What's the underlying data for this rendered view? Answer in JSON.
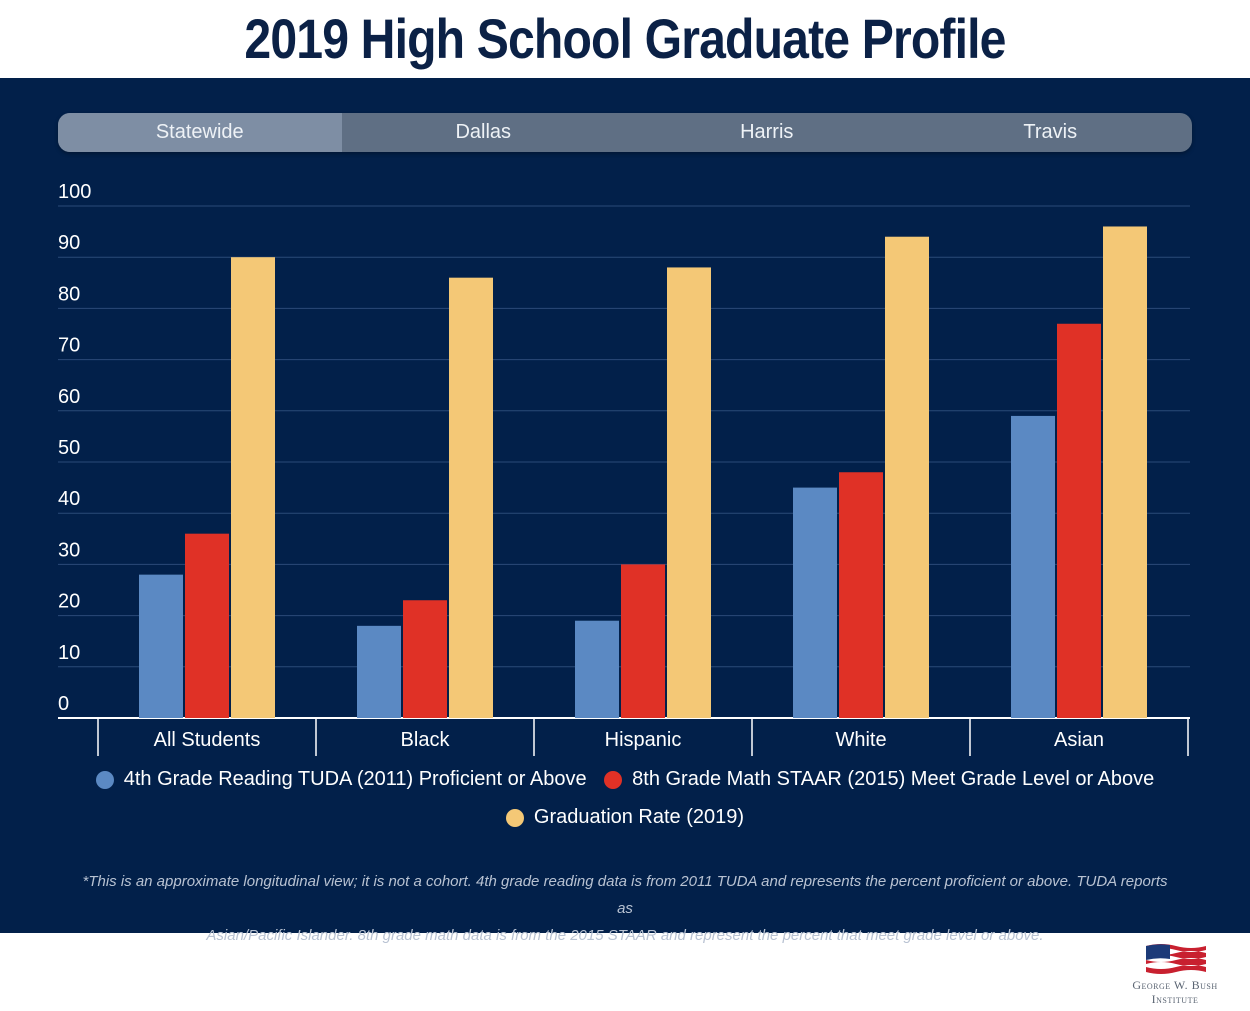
{
  "title": "2019 High School Graduate Profile",
  "tabs": [
    {
      "label": "Statewide",
      "active": true
    },
    {
      "label": "Dallas",
      "active": false
    },
    {
      "label": "Harris",
      "active": false
    },
    {
      "label": "Travis",
      "active": false
    }
  ],
  "colors": {
    "background": "#02204a",
    "reading": "#5b89c3",
    "math": "#e03126",
    "graduation": "#f4c876",
    "title": "#0b2146"
  },
  "chart_data": {
    "type": "bar",
    "title": "2019 High School Graduate Profile",
    "categories": [
      "All Students",
      "Black",
      "Hispanic",
      "White",
      "Asian"
    ],
    "ylim": [
      0,
      100
    ],
    "yticks": [
      0,
      10,
      20,
      30,
      40,
      50,
      60,
      70,
      80,
      90,
      100
    ],
    "grid": true,
    "legend_position": "bottom",
    "series": [
      {
        "name": "4th Grade Reading TUDA (2011) Proficient or Above",
        "color": "#5b89c3",
        "values": [
          28,
          18,
          19,
          45,
          59
        ]
      },
      {
        "name": "8th Grade Math STAAR (2015) Meet Grade Level or Above",
        "color": "#e03126",
        "values": [
          36,
          23,
          30,
          48,
          77
        ]
      },
      {
        "name": "Graduation Rate (2019)",
        "color": "#f4c876",
        "values": [
          90,
          86,
          88,
          94,
          96
        ]
      }
    ]
  },
  "footnote": {
    "line1": "*This is an approximate longitudinal view; it is not a cohort.  4th grade reading data is from 2011 TUDA and represents the percent proficient or above. TUDA reports as",
    "line2": "Asian/Pacific Islander.  8th grade math data is from the 2015 STAAR and represent the percent that meet grade level or above."
  },
  "logo": {
    "line1": "George W. Bush",
    "line2": "Institute",
    "icon": "american-flag-icon"
  }
}
